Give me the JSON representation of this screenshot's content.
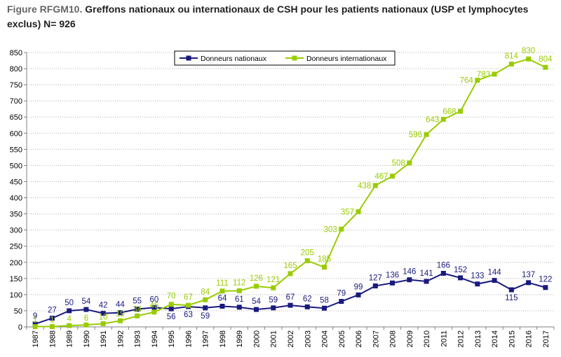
{
  "figure": {
    "number": "Figure RFGM10.",
    "title": "Greffons nationaux ou internationaux de CSH pour les patients nationaux  (USP et lymphocytes exclus) N= 926"
  },
  "colors": {
    "national": "#1a1a7e",
    "international": "#99cc00",
    "axis": "#808080",
    "grid": "#b0b0b0"
  },
  "chart_data": {
    "type": "line",
    "title": "Greffons nationaux ou internationaux de CSH pour les patients nationaux  (USP et lymphocytes exclus) N= 926",
    "xlabel": "",
    "ylabel": "",
    "ylim": [
      0,
      850
    ],
    "yticks": [
      0,
      50,
      100,
      150,
      200,
      250,
      300,
      350,
      400,
      450,
      500,
      550,
      600,
      650,
      700,
      750,
      800,
      850
    ],
    "grid": true,
    "legend_position": "top-center",
    "categories": [
      "1987",
      "1988",
      "1989",
      "1990",
      "1991",
      "1992",
      "1993",
      "1994",
      "1995",
      "1996",
      "1997",
      "1998",
      "1999",
      "2000",
      "2001",
      "2002",
      "2003",
      "2004",
      "2005",
      "2006",
      "2007",
      "2008",
      "2009",
      "2010",
      "2011",
      "2012",
      "2013",
      "2014",
      "2015",
      "2016",
      "2017"
    ],
    "series": [
      {
        "name": "Donneurs nationaux",
        "color": "#1a1a7e",
        "marker": "square",
        "values": [
          9,
          27,
          50,
          54,
          42,
          44,
          55,
          60,
          56,
          63,
          59,
          64,
          61,
          54,
          59,
          67,
          62,
          58,
          79,
          99,
          127,
          136,
          146,
          141,
          166,
          152,
          133,
          144,
          115,
          137,
          122
        ]
      },
      {
        "name": "Donneurs internationaux",
        "color": "#99cc00",
        "marker": "square",
        "values": [
          1,
          1,
          4,
          6,
          10,
          19,
          34,
          46,
          70,
          67,
          84,
          111,
          112,
          126,
          121,
          165,
          205,
          185,
          303,
          357,
          438,
          467,
          508,
          596,
          643,
          668,
          764,
          783,
          814,
          830,
          804
        ]
      }
    ]
  }
}
